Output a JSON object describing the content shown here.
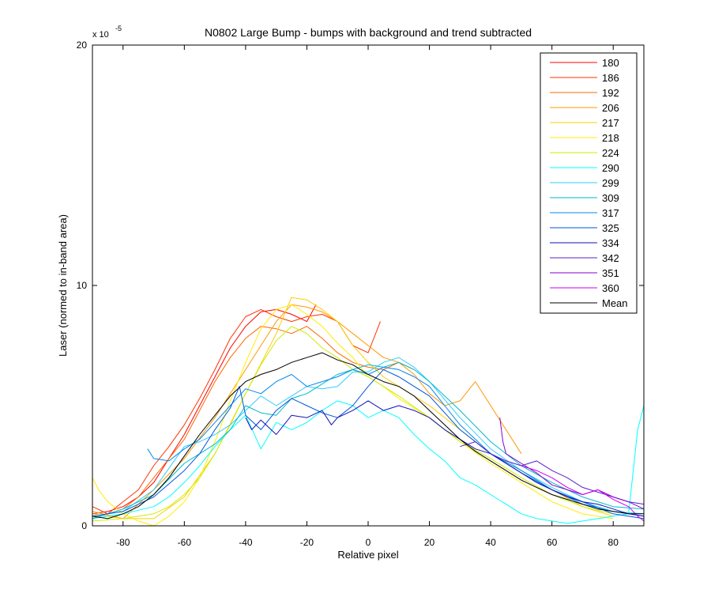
{
  "chart_data": {
    "type": "line",
    "title": "N0802   Large Bump - bumps with background  and trend subtracted",
    "xlabel": "Relative pixel",
    "ylabel": "Laser (normed to in-band area)",
    "y_multiplier_label": "x 10",
    "y_multiplier_exponent": "-5",
    "xlim": [
      -90,
      90
    ],
    "ylim": [
      0,
      20
    ],
    "x_ticks": [
      -80,
      -60,
      -40,
      -20,
      0,
      20,
      40,
      60,
      80
    ],
    "y_ticks": [
      0,
      10,
      20
    ],
    "legend_position": "top-right",
    "grid": false,
    "series": [
      {
        "name": "180",
        "color": "#ff0000",
        "x": [
          -90,
          -85,
          -80,
          -75,
          -70,
          -65,
          -60,
          -55,
          -50,
          -45,
          -40,
          -35,
          -30,
          -25,
          -20,
          -17
        ],
        "y": [
          0.5,
          0.6,
          0.8,
          1.2,
          1.8,
          2.8,
          3.8,
          5.0,
          6.2,
          7.4,
          8.3,
          8.9,
          9.0,
          8.8,
          8.5,
          9.2
        ]
      },
      {
        "name": "186",
        "color": "#ff3300",
        "x": [
          -90,
          -85,
          -80,
          -75,
          -70,
          -65,
          -60,
          -55,
          -50,
          -45,
          -40,
          -35,
          -30,
          -25,
          -20,
          -15,
          -10,
          -5,
          0,
          4
        ],
        "y": [
          0.8,
          0.5,
          1.0,
          1.5,
          2.5,
          3.3,
          4.2,
          5.3,
          6.5,
          7.8,
          8.7,
          9.0,
          8.7,
          8.5,
          8.7,
          8.8,
          8.5,
          7.5,
          7.2,
          8.5
        ]
      },
      {
        "name": "192",
        "color": "#ff6600",
        "x": [
          -90,
          -85,
          -80,
          -75,
          -70,
          -65,
          -60,
          -55,
          -50,
          -45,
          -40,
          -35,
          -30,
          -25,
          -20,
          -15,
          -10,
          -5,
          0,
          5,
          10,
          15
        ],
        "y": [
          0.3,
          0.5,
          0.7,
          1.2,
          2.0,
          2.8,
          3.6,
          4.8,
          6.0,
          7.0,
          7.8,
          8.3,
          8.2,
          8.0,
          8.3,
          7.8,
          7.2,
          6.8,
          6.6,
          6.5,
          6.8,
          6.5
        ]
      },
      {
        "name": "206",
        "color": "#ff9900",
        "x": [
          -90,
          -80,
          -70,
          -60,
          -50,
          -40,
          -30,
          -25,
          -20,
          -15,
          -10,
          -5,
          0,
          5,
          10,
          15,
          20,
          25,
          30,
          35,
          40,
          45,
          50
        ],
        "y": [
          0.6,
          0.3,
          1.5,
          2.8,
          4.5,
          6.5,
          8.5,
          9.2,
          9.1,
          8.9,
          8.5,
          8.0,
          7.5,
          7.0,
          6.8,
          6.3,
          5.5,
          5.0,
          5.2,
          6.0,
          5.0,
          4.0,
          3.0
        ]
      },
      {
        "name": "217",
        "color": "#ffcc00",
        "x": [
          -90,
          -80,
          -70,
          -60,
          -50,
          -40,
          -30,
          -25,
          -20,
          -15,
          -10,
          -5,
          0,
          5,
          10,
          20,
          30,
          40,
          50,
          60,
          70,
          80
        ],
        "y": [
          0.5,
          0.3,
          0.3,
          1.2,
          3.0,
          5.5,
          8.0,
          9.5,
          9.4,
          9.0,
          8.5,
          7.5,
          6.8,
          6.2,
          5.8,
          5.0,
          4.0,
          3.0,
          2.3,
          1.5,
          0.8,
          0.4
        ]
      },
      {
        "name": "218",
        "color": "#ffee00",
        "x": [
          -90,
          -88,
          -85,
          -80,
          -75,
          -70,
          -65,
          -60,
          -55,
          -50,
          -45,
          -40,
          -35,
          -30,
          -25,
          -20,
          -15,
          -10,
          -5,
          0,
          5,
          10,
          20,
          30,
          40,
          50,
          60,
          70,
          80
        ],
        "y": [
          2.0,
          1.5,
          1.0,
          0.5,
          0.2,
          0.0,
          0.4,
          1.0,
          2.0,
          3.5,
          5.2,
          6.8,
          8.2,
          9.0,
          9.2,
          8.8,
          8.3,
          7.6,
          7.0,
          6.2,
          5.8,
          5.3,
          4.5,
          3.5,
          2.6,
          1.8,
          1.0,
          0.5,
          0.3
        ]
      },
      {
        "name": "224",
        "color": "#ccee00",
        "x": [
          -90,
          -80,
          -70,
          -65,
          -60,
          -55,
          -50,
          -45,
          -40,
          -35,
          -30,
          -25,
          -20,
          -15,
          -10,
          -5,
          0,
          5,
          10,
          20,
          30,
          40,
          50,
          60,
          70,
          80
        ],
        "y": [
          0.2,
          0.3,
          0.5,
          0.8,
          1.3,
          2.0,
          3.0,
          4.2,
          5.5,
          6.7,
          7.7,
          8.3,
          8.0,
          7.4,
          7.0,
          6.5,
          6.2,
          5.8,
          5.4,
          4.5,
          3.5,
          2.8,
          2.0,
          1.3,
          0.8,
          0.5
        ]
      },
      {
        "name": "290",
        "color": "#00ffff",
        "x": [
          -90,
          -80,
          -70,
          -65,
          -60,
          -55,
          -50,
          -45,
          -40,
          -35,
          -30,
          -25,
          -20,
          -15,
          -10,
          -5,
          0,
          5,
          10,
          15,
          20,
          25,
          30,
          35,
          40,
          45,
          50,
          55,
          60,
          65,
          70,
          75,
          80,
          85,
          88,
          90
        ],
        "y": [
          0.3,
          0.5,
          0.8,
          1.2,
          1.8,
          2.5,
          3.3,
          4.0,
          4.6,
          3.2,
          4.3,
          4.0,
          4.3,
          4.8,
          5.2,
          5.0,
          4.5,
          4.8,
          4.5,
          3.8,
          3.2,
          2.7,
          2.0,
          1.7,
          1.3,
          0.9,
          0.5,
          0.3,
          0.2,
          0.1,
          0.2,
          0.3,
          0.4,
          0.5,
          4.0,
          5.0
        ]
      },
      {
        "name": "299",
        "color": "#33ccff",
        "x": [
          -90,
          -80,
          -70,
          -60,
          -55,
          -50,
          -45,
          -40,
          -35,
          -30,
          -25,
          -20,
          -15,
          -10,
          -5,
          0,
          5,
          10,
          15,
          20,
          30,
          40,
          50,
          60,
          70,
          80,
          90
        ],
        "y": [
          0.4,
          0.6,
          1.5,
          3.3,
          3.5,
          3.8,
          4.2,
          4.8,
          5.4,
          5.0,
          5.4,
          5.8,
          5.7,
          5.8,
          6.4,
          6.4,
          6.8,
          7.0,
          6.6,
          6.0,
          4.5,
          3.2,
          2.3,
          1.6,
          1.0,
          0.6,
          0.5
        ]
      },
      {
        "name": "309",
        "color": "#00bbcc",
        "x": [
          -90,
          -80,
          -70,
          -60,
          -55,
          -50,
          -45,
          -40,
          -35,
          -30,
          -25,
          -20,
          -15,
          -10,
          -5,
          0,
          5,
          10,
          15,
          20,
          30,
          40,
          50,
          60,
          70,
          80,
          90
        ],
        "y": [
          0.3,
          0.7,
          1.3,
          2.6,
          3.0,
          3.4,
          4.0,
          5.0,
          4.7,
          4.6,
          5.3,
          5.5,
          5.9,
          6.3,
          6.5,
          6.7,
          6.6,
          6.8,
          6.5,
          6.0,
          4.8,
          3.5,
          2.5,
          1.8,
          1.2,
          0.8,
          0.7
        ]
      },
      {
        "name": "317",
        "color": "#0088ee",
        "x": [
          -72,
          -70,
          -65,
          -60,
          -55,
          -50,
          -45,
          -40,
          -35,
          -30,
          -25,
          -20,
          -15,
          -10,
          -5,
          0,
          5,
          10,
          15,
          20,
          25,
          30,
          40,
          50,
          60,
          70,
          80,
          90
        ],
        "y": [
          3.2,
          2.8,
          2.7,
          3.2,
          3.6,
          4.3,
          5.0,
          5.7,
          5.5,
          6.0,
          6.3,
          5.8,
          6.0,
          6.2,
          6.5,
          6.3,
          6.6,
          6.5,
          6.2,
          5.8,
          5.0,
          4.2,
          3.0,
          2.3,
          1.5,
          0.9,
          0.6,
          0.4
        ]
      },
      {
        "name": "325",
        "color": "#0055dd",
        "x": [
          -90,
          -80,
          -70,
          -60,
          -55,
          -50,
          -45,
          -42,
          -40,
          -35,
          -30,
          -25,
          -20,
          -15,
          -10,
          -5,
          0,
          5,
          10,
          15,
          20,
          30,
          40,
          50,
          60,
          70,
          80,
          90
        ],
        "y": [
          0.4,
          0.6,
          1.2,
          2.3,
          3.0,
          4.0,
          4.9,
          5.8,
          4.6,
          4.0,
          4.8,
          5.3,
          5.0,
          4.7,
          4.5,
          5.0,
          5.8,
          6.5,
          6.2,
          5.8,
          5.4,
          4.0,
          3.0,
          2.2,
          1.5,
          1.0,
          0.5,
          0.3
        ]
      },
      {
        "name": "334",
        "color": "#1111bb",
        "x": [
          -40,
          -38,
          -35,
          -30,
          -25,
          -20,
          -15,
          -12,
          -10,
          -5,
          0,
          5,
          10,
          15,
          20,
          25,
          30,
          35,
          40,
          45,
          50,
          55,
          60,
          65,
          70,
          75,
          80,
          85,
          90
        ],
        "y": [
          4.5,
          4.0,
          4.4,
          3.8,
          4.6,
          4.5,
          4.8,
          4.2,
          4.5,
          4.8,
          5.2,
          4.8,
          5.0,
          4.8,
          4.5,
          4.0,
          3.6,
          3.2,
          3.0,
          2.6,
          2.2,
          1.8,
          1.5,
          1.2,
          1.0,
          0.9,
          0.7,
          0.5,
          0.4
        ]
      },
      {
        "name": "342",
        "color": "#5522cc",
        "x": [
          30,
          35,
          40,
          45,
          50,
          55,
          60,
          65,
          70,
          75,
          80,
          85,
          90
        ],
        "y": [
          3.3,
          3.5,
          3.0,
          2.7,
          2.5,
          2.7,
          2.3,
          2.0,
          1.6,
          1.4,
          1.2,
          1.0,
          0.9
        ]
      },
      {
        "name": "351",
        "color": "#8800cc",
        "x": [
          43,
          44,
          45,
          50,
          55,
          60,
          65,
          70,
          75,
          80,
          85,
          90
        ],
        "y": [
          4.5,
          3.5,
          3.0,
          2.6,
          2.2,
          1.7,
          1.5,
          1.3,
          1.5,
          1.2,
          1.0,
          0.7
        ]
      },
      {
        "name": "360",
        "color": "#cc00ee",
        "x": [
          50,
          55,
          60,
          65,
          70,
          75,
          80,
          85,
          88,
          90
        ],
        "y": [
          2.5,
          2.3,
          2.0,
          1.6,
          1.3,
          1.5,
          1.1,
          0.8,
          0.4,
          0.2
        ]
      },
      {
        "name": "Mean",
        "color": "#000000",
        "x": [
          -90,
          -85,
          -80,
          -75,
          -70,
          -65,
          -60,
          -55,
          -50,
          -45,
          -40,
          -35,
          -30,
          -25,
          -20,
          -15,
          -10,
          -5,
          0,
          5,
          10,
          15,
          20,
          25,
          30,
          35,
          40,
          45,
          50,
          55,
          60,
          65,
          70,
          75,
          80,
          85,
          90
        ],
        "y": [
          0.4,
          0.3,
          0.5,
          0.8,
          1.3,
          2.0,
          2.9,
          3.8,
          4.6,
          5.4,
          6.0,
          6.3,
          6.5,
          6.8,
          7.0,
          7.2,
          6.9,
          6.7,
          6.3,
          6.0,
          5.8,
          5.4,
          4.8,
          4.2,
          3.6,
          3.1,
          2.7,
          2.3,
          1.9,
          1.6,
          1.3,
          1.1,
          0.9,
          0.7,
          0.6,
          0.5,
          0.5
        ]
      }
    ]
  }
}
